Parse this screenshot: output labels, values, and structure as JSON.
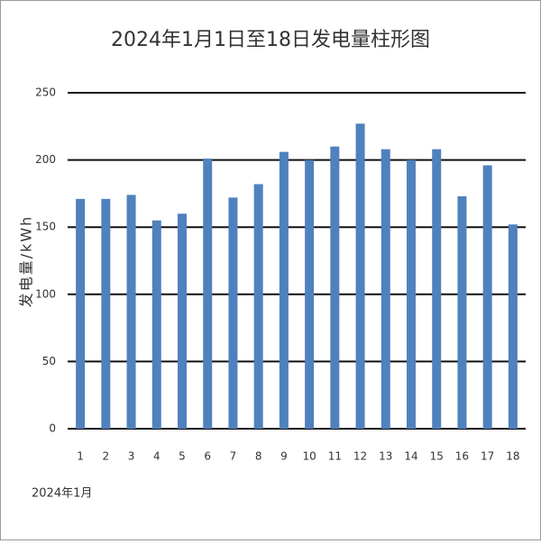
{
  "chart_data": {
    "type": "bar",
    "title": "2024年1月1日至18日发电量柱形图",
    "y_label": "发电量/kWh",
    "x_label": "2024年1月",
    "categories": [
      "1",
      "2",
      "3",
      "4",
      "5",
      "6",
      "7",
      "8",
      "9",
      "10",
      "11",
      "12",
      "13",
      "14",
      "15",
      "16",
      "17",
      "18"
    ],
    "values": [
      171,
      171,
      174,
      155,
      160,
      201,
      172,
      182,
      206,
      200,
      210,
      227,
      208,
      200,
      208,
      173,
      196,
      152
    ],
    "color": "#4f81bd",
    "ylim": [
      0,
      250
    ],
    "yticks": [
      0,
      50,
      100,
      150,
      200,
      250
    ],
    "grid": true
  }
}
